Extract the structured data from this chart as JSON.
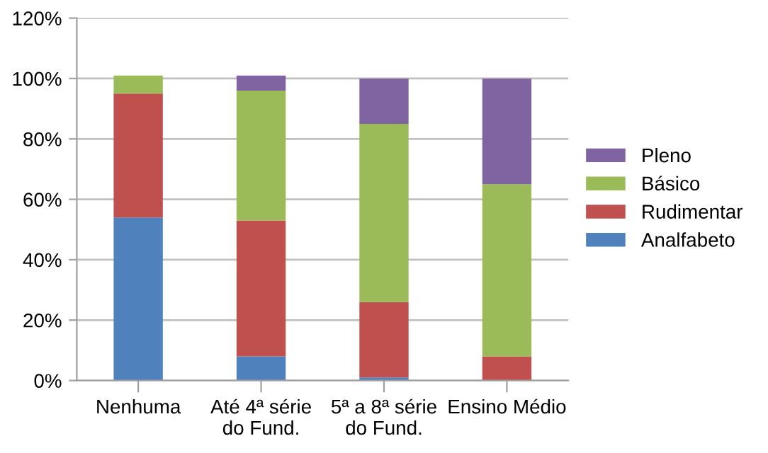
{
  "chart_data": {
    "type": "bar",
    "stacked": true,
    "categories": [
      "Nenhuma",
      "Até 4ª série\ndo Fund.",
      "5ª a 8ª série\ndo Fund.",
      "Ensino Médio"
    ],
    "series": [
      {
        "name": "Analfabeto",
        "color": "#4f81bd",
        "values": [
          54,
          8,
          1,
          0
        ]
      },
      {
        "name": "Rudimentar",
        "color": "#c0504d",
        "values": [
          41,
          45,
          25,
          8
        ]
      },
      {
        "name": "Básico",
        "color": "#9bbb59",
        "values": [
          6,
          43,
          59,
          57
        ]
      },
      {
        "name": "Pleno",
        "color": "#8064a2",
        "values": [
          0,
          5,
          15,
          35
        ]
      }
    ],
    "ylim": [
      0,
      120
    ],
    "yticks": [
      {
        "value": 0,
        "label": "0%"
      },
      {
        "value": 20,
        "label": "20%"
      },
      {
        "value": 40,
        "label": "40%"
      },
      {
        "value": 60,
        "label": "60%"
      },
      {
        "value": 80,
        "label": "80%"
      },
      {
        "value": 100,
        "label": "100%"
      },
      {
        "value": 120,
        "label": "120%"
      }
    ],
    "grid": "y",
    "legend": "right"
  }
}
